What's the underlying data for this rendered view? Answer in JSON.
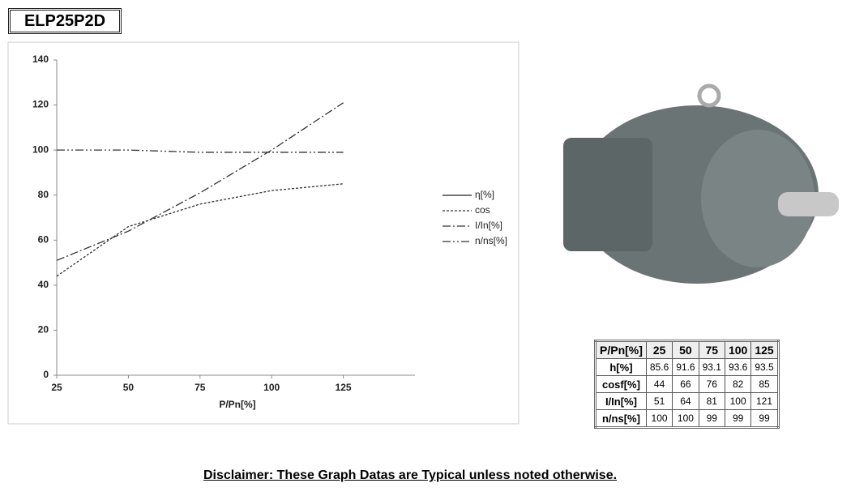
{
  "header": {
    "title": "ELP25P2D"
  },
  "chart_data": {
    "type": "line",
    "x": [
      25,
      50,
      75,
      100,
      125
    ],
    "xlim": [
      25,
      150
    ],
    "xticks": [
      25,
      50,
      75,
      100,
      125
    ],
    "ylim": [
      0,
      140
    ],
    "yticks": [
      0,
      20,
      40,
      60,
      80,
      100,
      120,
      140
    ],
    "xlabel": "P/Pn[%]",
    "series": [
      {
        "name": "η[%]",
        "color": "#222222",
        "dash": "solid",
        "values": [
          null,
          null,
          null,
          null,
          null
        ]
      },
      {
        "name": "cos",
        "color": "#333333",
        "dash": "dashed",
        "values": [
          44,
          66,
          76,
          82,
          85
        ]
      },
      {
        "name": "I/In[%]",
        "color": "#333333",
        "dash": "dashdot",
        "values": [
          51,
          64,
          81,
          100,
          121
        ]
      },
      {
        "name": "n/ns[%]",
        "color": "#333333",
        "dash": "dashdotdot",
        "values": [
          100,
          100,
          99,
          99,
          99
        ]
      }
    ],
    "legend": "right"
  },
  "table": {
    "header": [
      "P/Pn[%]",
      25,
      50,
      75,
      100,
      125
    ],
    "rows": [
      [
        "h[%]",
        85.6,
        91.6,
        93.1,
        93.6,
        93.5
      ],
      [
        "cosf[%]",
        44,
        66,
        76,
        82,
        85
      ],
      [
        "I/In[%]",
        51,
        64,
        81,
        100,
        121
      ],
      [
        "n/ns[%]",
        100,
        100,
        99,
        99,
        99
      ]
    ]
  },
  "footer": {
    "disclaimer": "Disclaimer: These Graph Datas are Typical unless noted otherwise."
  }
}
